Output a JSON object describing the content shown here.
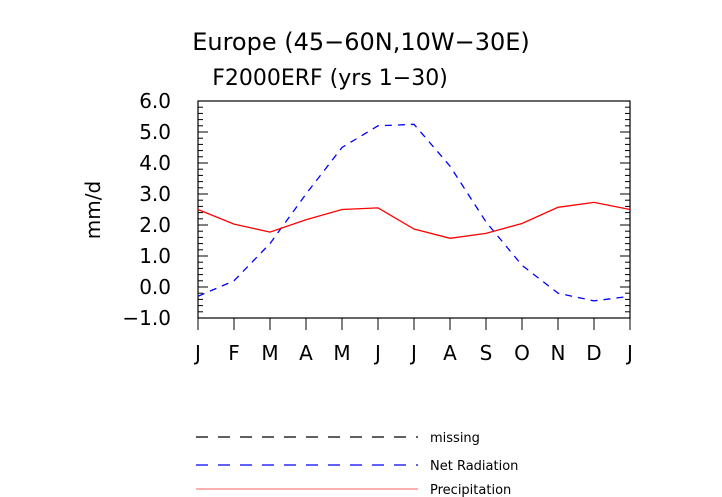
{
  "chart_data": {
    "type": "line",
    "title": "Europe (45−60N,10W−30E)",
    "subtitle": "F2000ERF (yrs 1−30)",
    "xlabel": "",
    "ylabel": "mm/d",
    "categories": [
      "J",
      "F",
      "M",
      "A",
      "M",
      "J",
      "J",
      "A",
      "S",
      "O",
      "N",
      "D",
      "J"
    ],
    "ylim": [
      -1.0,
      6.0
    ],
    "yticks": [
      -1.0,
      0.0,
      1.0,
      2.0,
      3.0,
      4.0,
      5.0,
      6.0
    ],
    "ytick_labels": [
      "−1.0",
      "0.0",
      "1.0",
      "2.0",
      "3.0",
      "4.0",
      "5.0",
      "6.0"
    ],
    "grid": false,
    "legend_position": "bottom",
    "series": [
      {
        "name": "Net Radiation",
        "color": "#0000ff",
        "style": "dashed",
        "values": [
          -0.3,
          0.2,
          1.4,
          3.0,
          4.5,
          5.2,
          5.25,
          3.9,
          2.1,
          0.7,
          -0.2,
          -0.45,
          -0.3
        ]
      },
      {
        "name": "Precipitation",
        "color": "#ff0000",
        "style": "solid",
        "values": [
          2.5,
          2.03,
          1.77,
          2.17,
          2.5,
          2.55,
          1.87,
          1.57,
          1.73,
          2.05,
          2.57,
          2.73,
          2.5
        ]
      }
    ],
    "legend": [
      {
        "label": "missing",
        "color": "#000000",
        "style": "dashed"
      },
      {
        "label": "Net Radiation",
        "color": "#0000ff",
        "style": "dashed"
      },
      {
        "label": "Precipitation",
        "color": "#ff8080",
        "style": "solid"
      }
    ]
  }
}
